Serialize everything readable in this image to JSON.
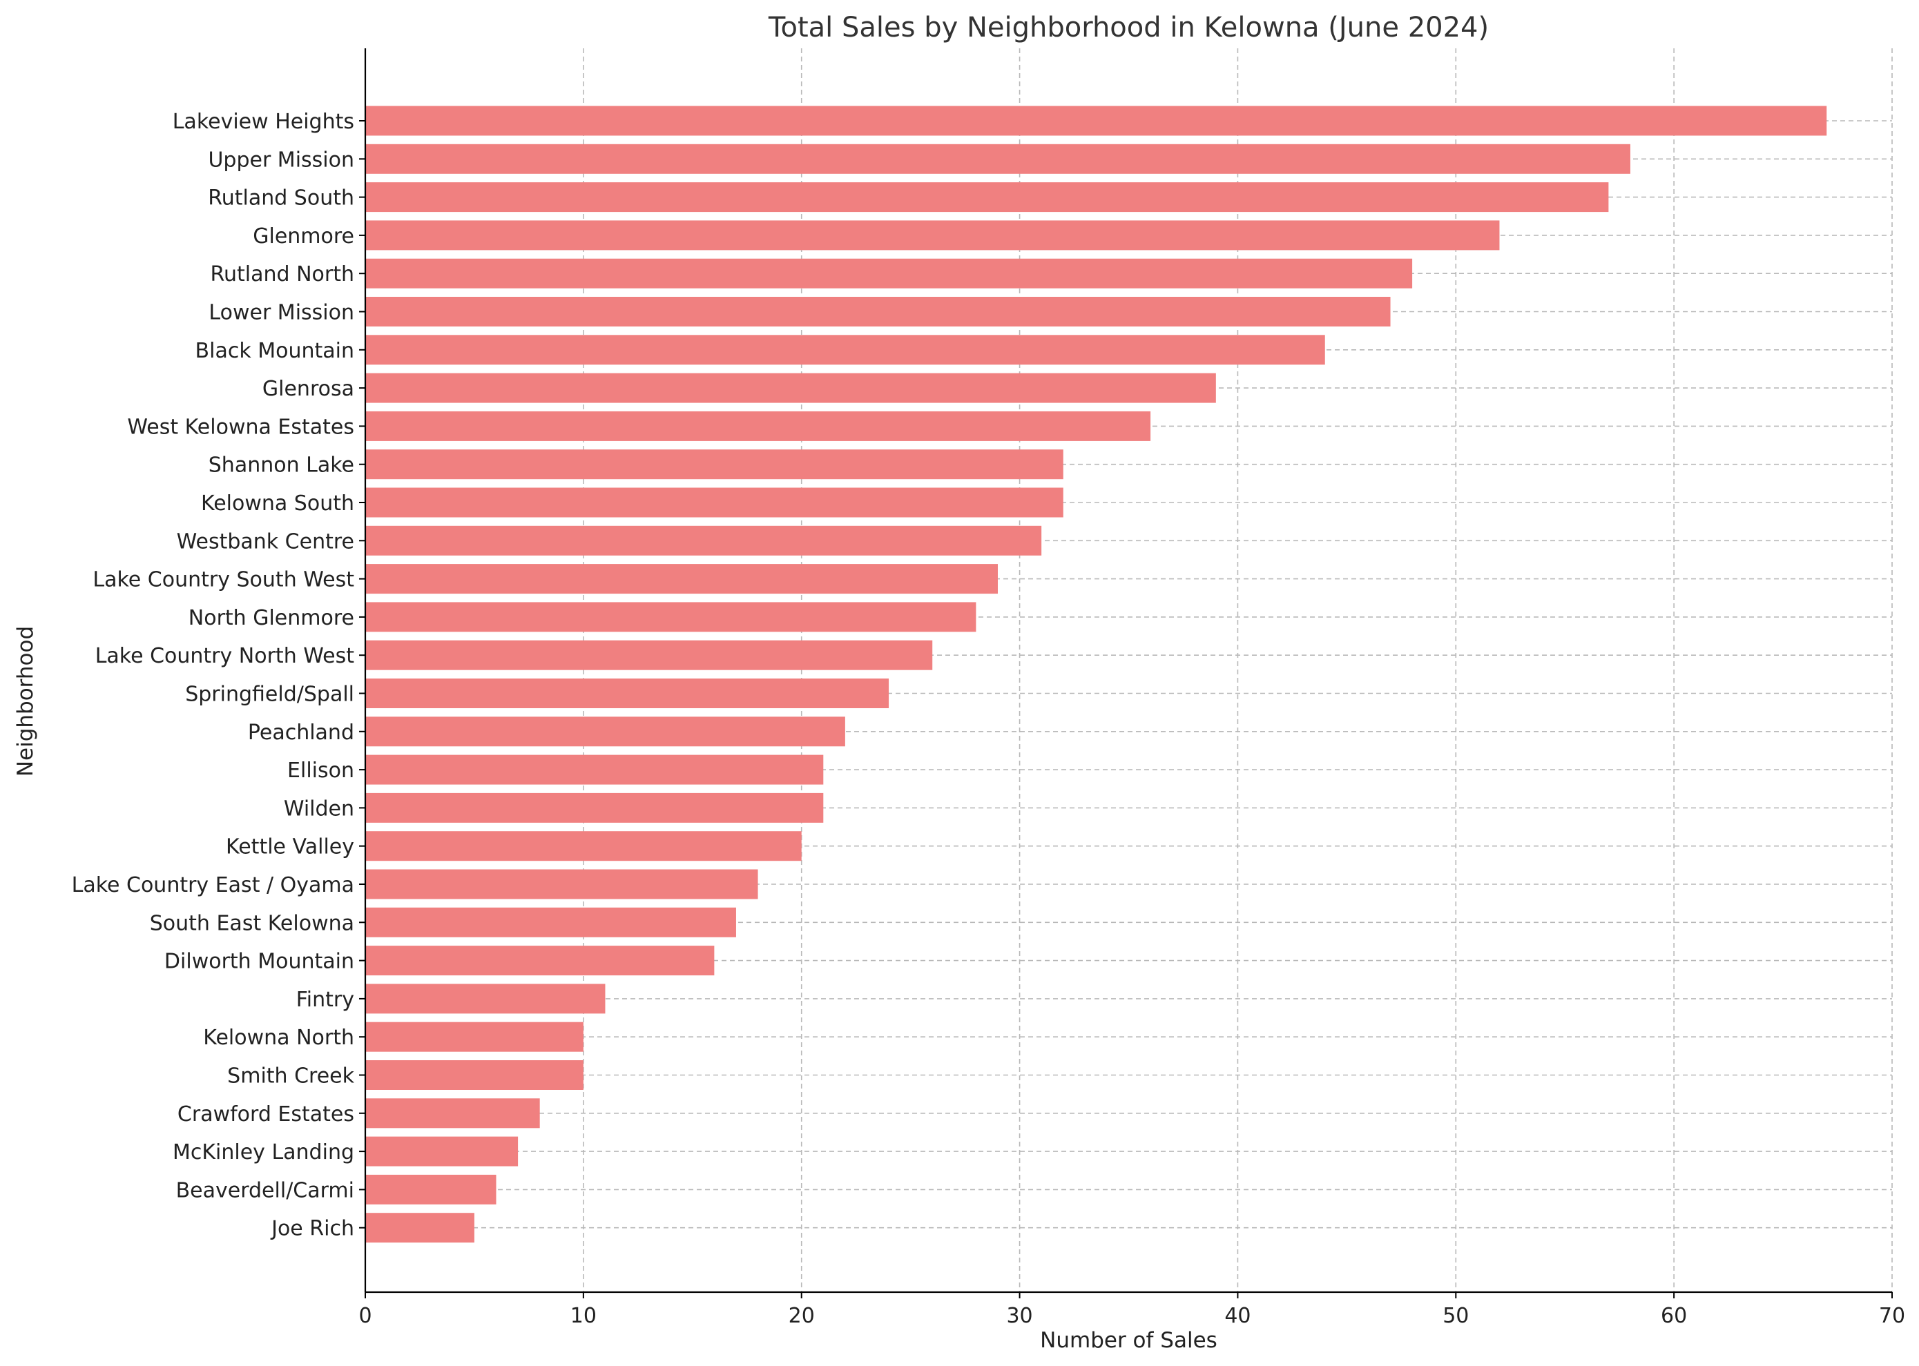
{
  "chart_data": {
    "type": "bar",
    "orientation": "horizontal",
    "title": "Total Sales by Neighborhood in Kelowna (June 2024)",
    "xlabel": "Number of Sales",
    "ylabel": "Neighborhood",
    "xlim": [
      0,
      70
    ],
    "xticks": [
      0,
      10,
      20,
      30,
      40,
      50,
      60,
      70
    ],
    "grid": true,
    "bar_color": "#f08080",
    "categories": [
      "Lakeview Heights",
      "Upper Mission",
      "Rutland South",
      "Glenmore",
      "Rutland North",
      "Lower Mission",
      "Black Mountain",
      "Glenrosa",
      "West Kelowna Estates",
      "Shannon Lake",
      "Kelowna South",
      "Westbank Centre",
      "Lake Country South West",
      "North Glenmore",
      "Lake Country North West",
      "Springfield/Spall",
      "Peachland",
      "Ellison",
      "Wilden",
      "Kettle Valley",
      "Lake Country East / Oyama",
      "South East Kelowna",
      "Dilworth Mountain",
      "Fintry",
      "Kelowna North",
      "Smith Creek",
      "Crawford Estates",
      "McKinley Landing",
      "Beaverdell/Carmi",
      "Joe Rich"
    ],
    "values": [
      67,
      58,
      57,
      52,
      48,
      47,
      44,
      39,
      36,
      32,
      32,
      31,
      29,
      28,
      26,
      24,
      22,
      21,
      21,
      20,
      18,
      17,
      16,
      11,
      10,
      10,
      8,
      7,
      6,
      5
    ]
  }
}
